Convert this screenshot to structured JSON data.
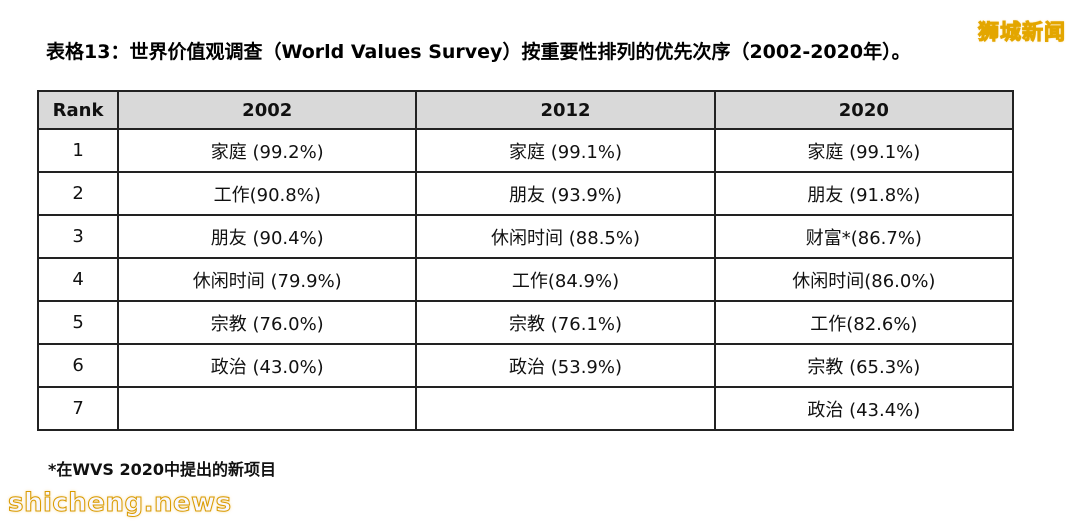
{
  "title": "表格13：世界价值观调查（World Values Survey）按重要性排列的优先次序（2002-2020年）。",
  "watermark_top": "狮城新闻",
  "watermark_bottom": "shicheng.news",
  "footnote": "*在WVS 2020中提出的新项目",
  "table": {
    "headers": [
      "Rank",
      "2002",
      "2012",
      "2020"
    ],
    "rows": [
      [
        "1",
        "家庭 (99.2%)",
        "家庭 (99.1%)",
        "家庭 (99.1%)"
      ],
      [
        "2",
        "工作(90.8%)",
        "朋友 (93.9%)",
        "朋友 (91.8%)"
      ],
      [
        "3",
        "朋友 (90.4%)",
        "休闲时间 (88.5%)",
        "财富*(86.7%)"
      ],
      [
        "4",
        "休闲时间 (79.9%)",
        "工作(84.9%)",
        "休闲时间(86.0%)"
      ],
      [
        "5",
        "宗教 (76.0%)",
        "宗教 (76.1%)",
        "工作(82.6%)"
      ],
      [
        "6",
        "政治 (43.0%)",
        "政治 (53.9%)",
        "宗教 (65.3%)"
      ],
      [
        "7",
        "",
        "",
        "政治 (43.4%)"
      ]
    ]
  }
}
